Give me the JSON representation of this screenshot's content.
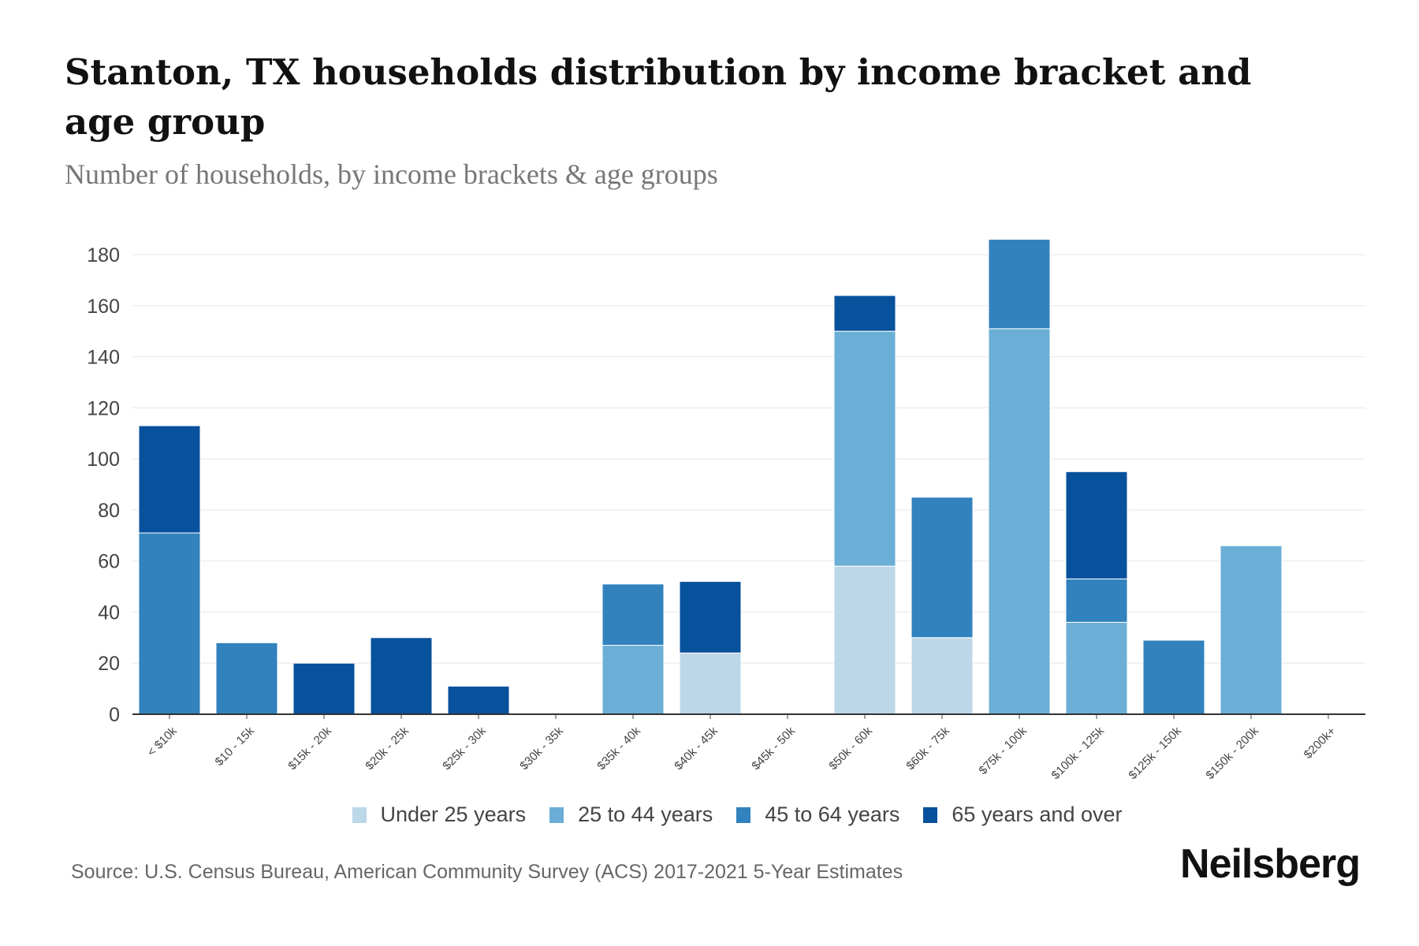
{
  "title": "Stanton, TX households distribution by income bracket and age group",
  "subtitle": "Number of households, by income brackets & age groups",
  "source": "Source: U.S. Census Bureau, American Community Survey (ACS) 2017-2021 5-Year Estimates",
  "logo": "Neilsberg",
  "chart_data": {
    "type": "bar",
    "stacked": true,
    "title": "Stanton, TX households distribution by income bracket and age group",
    "ylabel": "Number of households",
    "xlabel": "",
    "ylim": [
      0,
      186
    ],
    "yticks": [
      0,
      20,
      40,
      60,
      80,
      100,
      120,
      140,
      160,
      180
    ],
    "grid": true,
    "legend_position": "bottom",
    "categories": [
      "< $10k",
      "$10 - 15k",
      "$15k - 20k",
      "$20k - 25k",
      "$25k - 30k",
      "$30k - 35k",
      "$35k - 40k",
      "$40k - 45k",
      "$45k - 50k",
      "$50k - 60k",
      "$60k - 75k",
      "$75k - 100k",
      "$100k - 125k",
      "$125k - 150k",
      "$150k - 200k",
      "$200k+"
    ],
    "series": [
      {
        "name": "Under 25 years",
        "color": "#bcd7e8",
        "values": [
          0,
          0,
          0,
          0,
          0,
          0,
          0,
          24,
          0,
          58,
          30,
          0,
          0,
          0,
          0,
          0
        ]
      },
      {
        "name": "25 to 44 years",
        "color": "#6baed6",
        "values": [
          0,
          0,
          0,
          0,
          0,
          0,
          27,
          0,
          0,
          92,
          0,
          151,
          36,
          0,
          66,
          0
        ]
      },
      {
        "name": "45 to 64 years",
        "color": "#3182bd",
        "values": [
          71,
          28,
          0,
          0,
          0,
          0,
          24,
          0,
          0,
          0,
          55,
          35,
          17,
          29,
          0,
          0
        ]
      },
      {
        "name": "65 years and over",
        "color": "#08519c",
        "values": [
          42,
          0,
          20,
          30,
          11,
          0,
          0,
          28,
          0,
          14,
          0,
          0,
          42,
          0,
          0,
          0
        ]
      }
    ]
  }
}
